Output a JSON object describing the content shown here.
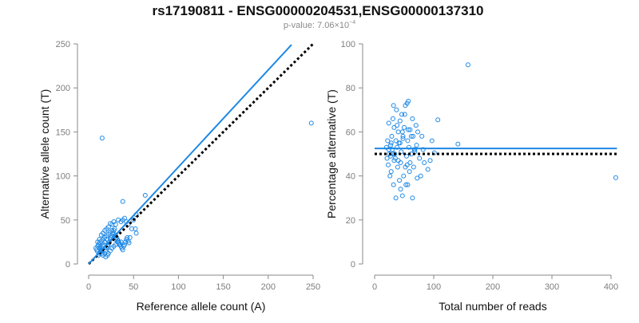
{
  "title": "rs17190811 - ENSG00000204531,ENSG00000137310",
  "subtitle": {
    "prefix": "p-value: ",
    "mantissa": "7.06",
    "times": "×10",
    "exponent": "−4"
  },
  "colors": {
    "accent": "#1e88e5",
    "axis": "#8a8a8a",
    "reference": "#000000",
    "text": "#111111",
    "tick_text": "#7d7d7d"
  },
  "chart_data": [
    {
      "type": "scatter",
      "title": "",
      "xlabel": "Reference allele count (A)",
      "ylabel": "Alternative allele count (T)",
      "xlim": [
        0,
        250
      ],
      "ylim": [
        0,
        250
      ],
      "xticks": [
        0,
        50,
        100,
        150,
        200,
        250
      ],
      "yticks": [
        0,
        50,
        100,
        150,
        200,
        250
      ],
      "grid": false,
      "fit_line": {
        "x": [
          0,
          226
        ],
        "y": [
          0,
          249
        ],
        "style": "solid"
      },
      "reference_line": {
        "x": [
          0,
          250
        ],
        "y": [
          0,
          250
        ],
        "style": "dotted"
      },
      "points": [
        [
          15,
          143
        ],
        [
          248,
          160
        ],
        [
          63,
          78
        ],
        [
          38,
          71
        ],
        [
          53,
          56
        ],
        [
          50,
          50
        ],
        [
          52,
          40
        ],
        [
          53,
          35
        ],
        [
          48,
          40
        ],
        [
          44,
          45
        ],
        [
          42,
          48
        ],
        [
          40,
          52
        ],
        [
          38,
          50
        ],
        [
          36,
          48
        ],
        [
          33,
          50
        ],
        [
          30,
          45
        ],
        [
          28,
          48
        ],
        [
          26,
          45
        ],
        [
          24,
          46
        ],
        [
          22,
          42
        ],
        [
          20,
          40
        ],
        [
          18,
          38
        ],
        [
          16,
          35
        ],
        [
          14,
          33
        ],
        [
          12,
          28
        ],
        [
          10,
          25
        ],
        [
          11,
          22
        ],
        [
          13,
          20
        ],
        [
          12,
          18
        ],
        [
          14,
          15
        ],
        [
          15,
          12
        ],
        [
          16,
          10
        ],
        [
          18,
          12
        ],
        [
          19,
          15
        ],
        [
          20,
          18
        ],
        [
          21,
          20
        ],
        [
          22,
          22
        ],
        [
          23,
          25
        ],
        [
          24,
          28
        ],
        [
          25,
          30
        ],
        [
          26,
          32
        ],
        [
          27,
          35
        ],
        [
          28,
          38
        ],
        [
          29,
          40
        ],
        [
          30,
          33
        ],
        [
          31,
          30
        ],
        [
          32,
          28
        ],
        [
          33,
          26
        ],
        [
          34,
          24
        ],
        [
          35,
          22
        ],
        [
          36,
          20
        ],
        [
          37,
          18
        ],
        [
          38,
          16
        ],
        [
          39,
          20
        ],
        [
          40,
          22
        ],
        [
          41,
          25
        ],
        [
          42,
          28
        ],
        [
          43,
          30
        ],
        [
          44,
          26
        ],
        [
          45,
          24
        ],
        [
          46,
          30
        ],
        [
          20,
          28
        ],
        [
          18,
          25
        ],
        [
          17,
          22
        ],
        [
          16,
          20
        ],
        [
          15,
          18
        ],
        [
          14,
          16
        ],
        [
          13,
          14
        ],
        [
          12,
          12
        ],
        [
          11,
          10
        ],
        [
          10,
          14
        ],
        [
          9,
          16
        ],
        [
          8,
          18
        ],
        [
          10,
          20
        ],
        [
          12,
          24
        ],
        [
          14,
          26
        ],
        [
          16,
          28
        ],
        [
          18,
          30
        ],
        [
          20,
          32
        ],
        [
          22,
          34
        ],
        [
          24,
          36
        ],
        [
          26,
          38
        ],
        [
          28,
          30
        ],
        [
          30,
          28
        ],
        [
          32,
          25
        ],
        [
          34,
          22
        ],
        [
          36,
          25
        ],
        [
          22,
          12
        ],
        [
          24,
          15
        ],
        [
          26,
          18
        ],
        [
          28,
          20
        ],
        [
          30,
          22
        ],
        [
          19,
          8
        ],
        [
          21,
          10
        ]
      ]
    },
    {
      "type": "scatter",
      "title": "",
      "xlabel": "Total number of reads",
      "ylabel": "Percentage alternative (T)",
      "xlim": [
        0,
        400
      ],
      "ylim": [
        0,
        100
      ],
      "xticks": [
        0,
        100,
        200,
        300,
        400
      ],
      "yticks": [
        0,
        20,
        40,
        60,
        80,
        100
      ],
      "grid": false,
      "fit_line": {
        "x": [
          0,
          410
        ],
        "y": [
          52.5,
          52.5
        ],
        "style": "solid"
      },
      "reference_line": {
        "x": [
          0,
          410
        ],
        "y": [
          50,
          50
        ],
        "style": "dotted"
      },
      "points": [
        [
          158,
          90.5
        ],
        [
          408,
          39.2
        ],
        [
          141,
          54.5
        ],
        [
          107,
          65.5
        ],
        [
          101,
          50.5
        ],
        [
          97,
          56
        ],
        [
          94,
          47
        ],
        [
          90,
          43
        ],
        [
          84,
          46
        ],
        [
          82,
          52
        ],
        [
          80,
          58
        ],
        [
          78,
          40
        ],
        [
          76,
          48
        ],
        [
          73,
          60
        ],
        [
          71,
          54
        ],
        [
          70,
          63
        ],
        [
          68,
          52
        ],
        [
          66,
          44
        ],
        [
          65,
          58
        ],
        [
          64,
          66
        ],
        [
          62,
          50
        ],
        [
          60,
          61
        ],
        [
          59,
          42
        ],
        [
          58,
          53
        ],
        [
          57,
          74
        ],
        [
          56,
          56
        ],
        [
          55,
          45
        ],
        [
          54,
          49
        ],
        [
          53,
          36
        ],
        [
          52,
          72
        ],
        [
          50,
          62
        ],
        [
          49,
          40
        ],
        [
          48,
          57
        ],
        [
          47,
          31
        ],
        [
          46,
          68
        ],
        [
          45,
          51
        ],
        [
          44,
          46
        ],
        [
          43,
          65
        ],
        [
          42,
          38
        ],
        [
          41,
          55
        ],
        [
          40,
          60
        ],
        [
          39,
          44
        ],
        [
          38,
          53
        ],
        [
          37,
          70
        ],
        [
          36,
          56
        ],
        [
          35,
          48
        ],
        [
          34,
          50
        ],
        [
          33,
          62
        ],
        [
          32,
          36
        ],
        [
          31,
          66
        ],
        [
          30,
          52
        ],
        [
          29,
          58
        ],
        [
          28,
          42
        ],
        [
          27,
          54
        ],
        [
          26,
          40
        ],
        [
          25,
          50
        ],
        [
          24,
          64
        ],
        [
          23,
          45
        ],
        [
          22,
          56
        ],
        [
          21,
          48
        ],
        [
          20,
          53
        ],
        [
          32,
          72
        ],
        [
          36,
          30
        ],
        [
          40,
          47
        ],
        [
          44,
          34
        ],
        [
          48,
          58
        ],
        [
          52,
          44
        ],
        [
          56,
          36
        ],
        [
          60,
          46
        ],
        [
          64,
          30
        ],
        [
          68,
          51
        ],
        [
          72,
          39
        ],
        [
          28,
          55
        ],
        [
          33,
          47
        ],
        [
          38,
          63
        ],
        [
          43,
          55
        ],
        [
          47,
          60
        ],
        [
          51,
          68
        ],
        [
          55,
          73
        ],
        [
          57,
          61
        ],
        [
          62,
          58
        ],
        [
          67,
          52
        ],
        [
          31,
          50
        ],
        [
          27,
          49
        ],
        [
          24,
          52
        ]
      ]
    }
  ]
}
